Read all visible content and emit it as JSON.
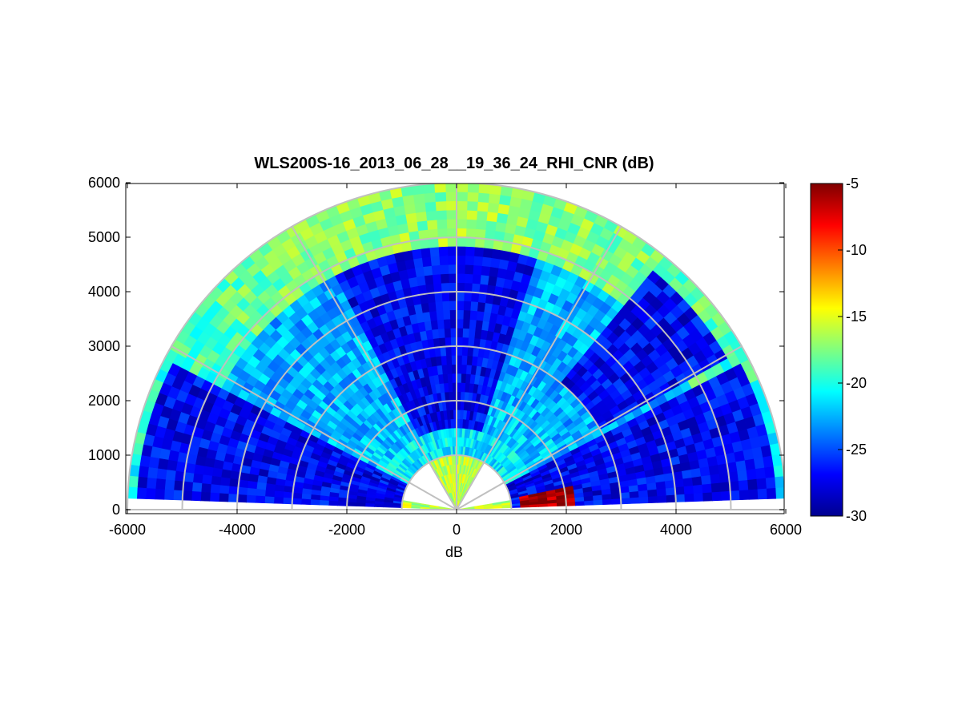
{
  "chart_data": {
    "type": "heatmap",
    "subtype": "polar-rhi-sector",
    "title": "WLS200S-16_2013_06_28__19_36_24_RHI_CNR (dB)",
    "xlabel": "dB",
    "ylabel": "",
    "xlim": [
      -6000,
      6000
    ],
    "ylim": [
      0,
      6000
    ],
    "x_ticks": [
      "-6000",
      "-4000",
      "-2000",
      "0",
      "2000",
      "4000",
      "6000"
    ],
    "y_ticks": [
      "0",
      "1000",
      "2000",
      "3000",
      "4000",
      "5000",
      "6000"
    ],
    "colorbar": {
      "colormap": "jet",
      "range": [
        -30,
        -5
      ],
      "ticks": [
        "-5",
        "-10",
        "-15",
        "-20",
        "-25",
        "-30"
      ]
    },
    "grid": true,
    "polar_grid": {
      "range_rings": [
        1000,
        2000,
        3000,
        4000,
        5000,
        6000
      ],
      "spoke_angles_deg": [
        0,
        30,
        60,
        90,
        120,
        150,
        180
      ]
    },
    "scan": {
      "elevation_deg": [
        2,
        178
      ],
      "max_range": 6000,
      "missing_sector_deg": [
        10,
        170
      ],
      "missing_below_range": 950
    },
    "features": [
      {
        "label": "near-ground maximum",
        "range": [
          1100,
          2100
        ],
        "elevation_deg": [
          2,
          12
        ],
        "value_db": -6
      },
      {
        "label": "upper band",
        "range": [
          5000,
          6000
        ],
        "value_db": -16
      },
      {
        "label": "low-elevation weak region",
        "range": [
          1000,
          6000
        ],
        "elevation_deg": [
          0,
          28
        ],
        "value_db": -27
      },
      {
        "label": "low-elevation weak region",
        "range": [
          1000,
          6000
        ],
        "elevation_deg": [
          152,
          180
        ],
        "value_db": -27
      },
      {
        "label": "weak mid region",
        "range": [
          1500,
          5000
        ],
        "elevation_deg": [
          70,
          120
        ],
        "value_db": -27
      }
    ]
  }
}
